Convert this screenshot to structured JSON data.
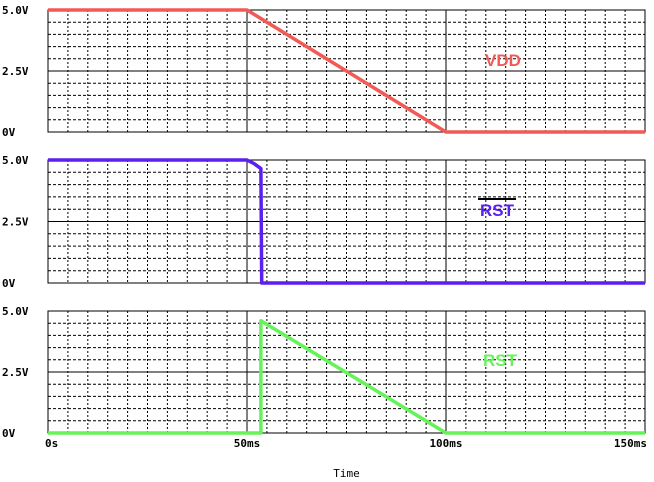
{
  "chart_data": [
    {
      "type": "line",
      "xlabel": "",
      "ylabel": "",
      "xlim": [
        0,
        150
      ],
      "ylim": [
        0,
        5
      ],
      "yticks": [
        {
          "value": 0,
          "label": "0V"
        },
        {
          "value": 2.5,
          "label": "2.5V"
        },
        {
          "value": 5,
          "label": "5.0V"
        }
      ],
      "grid": true,
      "series": [
        {
          "name": "VDD",
          "name_overline": false,
          "color": "#f25a55",
          "points": [
            [
              0,
              5
            ],
            [
              50,
              5
            ],
            [
              100,
              0
            ],
            [
              150,
              0
            ]
          ]
        }
      ]
    },
    {
      "type": "line",
      "xlabel": "",
      "ylabel": "",
      "xlim": [
        0,
        150
      ],
      "ylim": [
        0,
        5
      ],
      "yticks": [
        {
          "value": 0,
          "label": "0V"
        },
        {
          "value": 2.5,
          "label": "2.5V"
        },
        {
          "value": 5,
          "label": "5.0V"
        }
      ],
      "grid": true,
      "series": [
        {
          "name": "RST",
          "name_overline": true,
          "color": "#5b1ff0",
          "points": [
            [
              0,
              5
            ],
            [
              50,
              5
            ],
            [
              51.8,
              4.85
            ],
            [
              53.5,
              4.65
            ],
            [
              53.7,
              0
            ],
            [
              150,
              0
            ]
          ]
        }
      ]
    },
    {
      "type": "line",
      "xlabel": "Time",
      "ylabel": "",
      "xlim": [
        0,
        150
      ],
      "ylim": [
        0,
        5
      ],
      "xticks": [
        {
          "value": 0,
          "label": "0s"
        },
        {
          "value": 50,
          "label": "50ms"
        },
        {
          "value": 100,
          "label": "100ms"
        },
        {
          "value": 150,
          "label": "150ms"
        }
      ],
      "yticks": [
        {
          "value": 0,
          "label": "0V"
        },
        {
          "value": 2.5,
          "label": "2.5V"
        },
        {
          "value": 5,
          "label": "5.0V"
        }
      ],
      "grid": true,
      "series": [
        {
          "name": "RST",
          "name_overline": false,
          "color": "#66f25a",
          "points": [
            [
              0,
              0
            ],
            [
              53.5,
              0
            ],
            [
              53.5,
              4.6
            ],
            [
              100,
              0
            ],
            [
              150,
              0
            ]
          ]
        }
      ]
    }
  ]
}
